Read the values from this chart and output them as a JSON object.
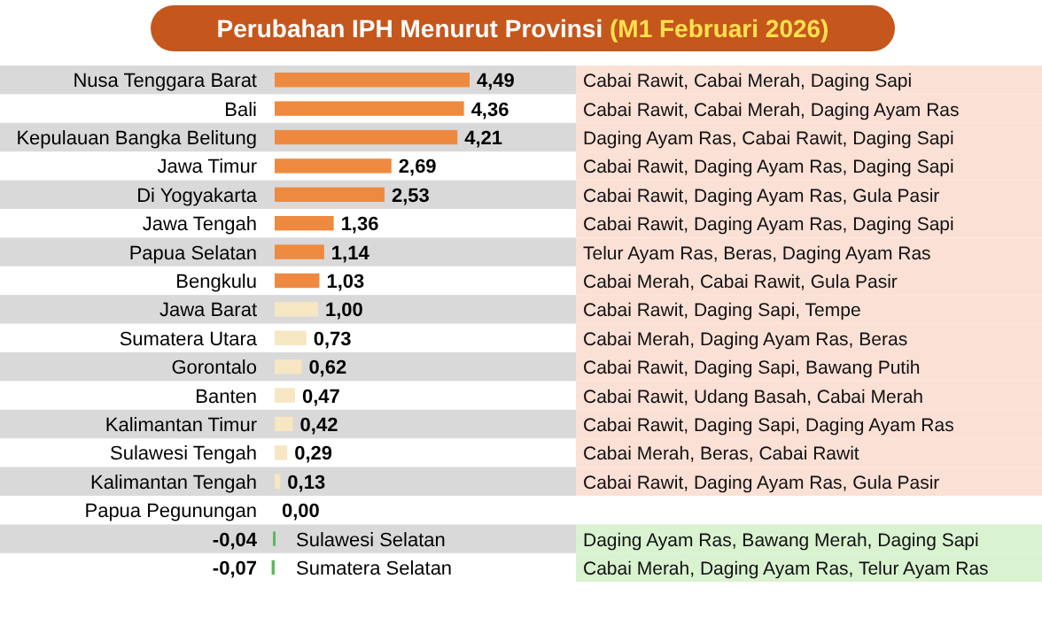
{
  "chart_data": {
    "type": "bar",
    "orientation": "horizontal",
    "title": "Perubahan IPH Menurut Provinsi",
    "subtitle": "(M1 Februari 2026)",
    "categories": [
      "Nusa Tenggara Barat",
      "Bali",
      "Kepulauan Bangka Belitung",
      "Jawa Timur",
      "Di Yogyakarta",
      "Jawa Tengah",
      "Papua Selatan",
      "Bengkulu",
      "Jawa Barat",
      "Sumatera Utara",
      "Gorontalo",
      "Banten",
      "Kalimantan Timur",
      "Sulawesi Tengah",
      "Kalimantan Tengah",
      "Papua Pegunungan",
      "Sulawesi Selatan",
      "Sumatera Selatan"
    ],
    "values": [
      4.49,
      4.36,
      4.21,
      2.69,
      2.53,
      1.36,
      1.14,
      1.03,
      1.0,
      0.73,
      0.62,
      0.47,
      0.42,
      0.29,
      0.13,
      0.0,
      -0.04,
      -0.07
    ],
    "value_labels": [
      "4,49",
      "4,36",
      "4,21",
      "2,69",
      "2,53",
      "1,36",
      "1,14",
      "1,03",
      "1,00",
      "0,73",
      "0,62",
      "0,47",
      "0,42",
      "0,29",
      "0,13",
      "0,00",
      "-0,04",
      "-0,07"
    ],
    "colors": [
      "#ee8a3f",
      "#ee8a3f",
      "#ee8a3f",
      "#ee8a3f",
      "#ee8a3f",
      "#ee8a3f",
      "#ee8a3f",
      "#ee8a3f",
      "#f7e6c2",
      "#f7e6c2",
      "#f7e6c2",
      "#f7e6c2",
      "#f7e6c2",
      "#f7e6c2",
      "#f7e6c2",
      "#f7e6c2",
      "#5cb85c",
      "#5cb85c"
    ],
    "annotations": [
      "Cabai Rawit,  Cabai Merah,  Daging Sapi",
      "Cabai Rawit,  Cabai Merah,  Daging Ayam Ras",
      "Daging Ayam Ras,  Cabai Rawit,  Daging Sapi",
      "Cabai Rawit,  Daging Ayam Ras,  Daging Sapi",
      "Cabai Rawit,  Daging Ayam Ras,  Gula Pasir",
      "Cabai Rawit,  Daging Ayam Ras,  Daging Sapi",
      "Telur Ayam Ras,  Beras,  Daging Ayam Ras",
      "Cabai Merah,  Cabai Rawit,  Gula Pasir",
      "Cabai Rawit,  Daging Sapi,  Tempe",
      "Cabai Merah,  Daging Ayam Ras,  Beras",
      "Cabai Rawit,  Daging Sapi,  Bawang Putih",
      "Cabai Rawit,  Udang Basah,  Cabai Merah",
      "Cabai Rawit,  Daging Sapi,  Daging Ayam Ras",
      "Cabai Merah,  Beras,  Cabai Rawit",
      "Cabai Rawit,  Daging Ayam Ras,  Gula Pasir",
      "Daging Ayam Ras,  Bawang Merah,  Daging Sapi",
      "Cabai Merah,  Daging Ayam Ras,  Telur Ayam Ras"
    ]
  }
}
